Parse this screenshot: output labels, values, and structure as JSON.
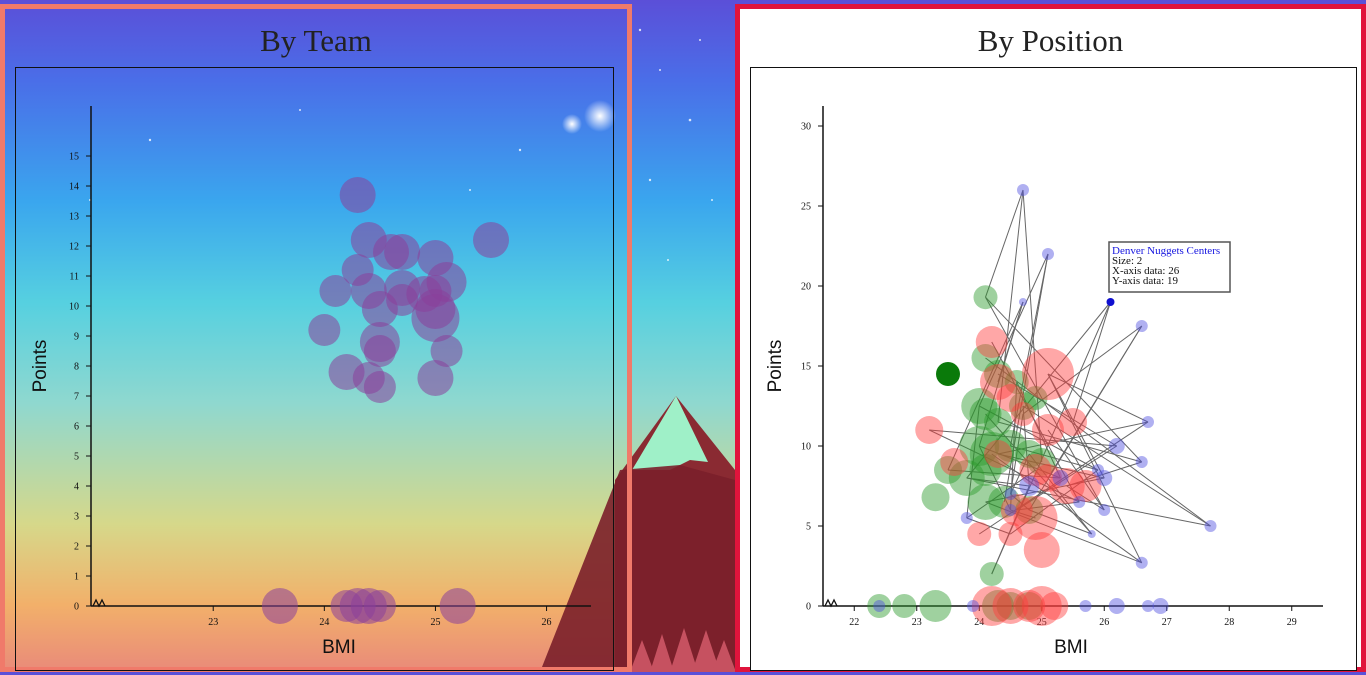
{
  "panels": {
    "team": {
      "title": "By Team"
    },
    "position": {
      "title": "By Position"
    }
  },
  "colors": {
    "team_bubble": "#8a3f9a",
    "guards": "#2a9a2a",
    "forwards": "#ff3b3b",
    "centers": "#5050e0",
    "link_line": "#666666"
  },
  "chart_data": [
    {
      "type": "scatter",
      "title": "By Team",
      "xlabel": "BMI",
      "ylabel": "Points",
      "xlim": [
        21.9,
        26.4
      ],
      "ylim": [
        0,
        16
      ],
      "xticks": [
        23,
        24,
        25,
        26
      ],
      "yticks": [
        0,
        1,
        2,
        3,
        4,
        5,
        6,
        7,
        8,
        9,
        10,
        11,
        12,
        13,
        14,
        15
      ],
      "series": [
        {
          "color": "#8a3f9a",
          "points": [
            {
              "x": 24.3,
              "y": 13.7,
              "size": 18
            },
            {
              "x": 24.4,
              "y": 12.2,
              "size": 18
            },
            {
              "x": 24.6,
              "y": 11.8,
              "size": 18
            },
            {
              "x": 24.7,
              "y": 11.8,
              "size": 18
            },
            {
              "x": 25.0,
              "y": 11.6,
              "size": 18
            },
            {
              "x": 25.5,
              "y": 12.2,
              "size": 18
            },
            {
              "x": 24.3,
              "y": 11.2,
              "size": 16
            },
            {
              "x": 24.1,
              "y": 10.5,
              "size": 16
            },
            {
              "x": 24.4,
              "y": 10.5,
              "size": 18
            },
            {
              "x": 24.7,
              "y": 10.6,
              "size": 18
            },
            {
              "x": 24.9,
              "y": 10.4,
              "size": 18
            },
            {
              "x": 25.0,
              "y": 10.5,
              "size": 16
            },
            {
              "x": 25.1,
              "y": 10.8,
              "size": 20
            },
            {
              "x": 24.5,
              "y": 9.9,
              "size": 18
            },
            {
              "x": 24.7,
              "y": 10.2,
              "size": 16
            },
            {
              "x": 25.0,
              "y": 9.9,
              "size": 20
            },
            {
              "x": 25.0,
              "y": 9.6,
              "size": 24
            },
            {
              "x": 24.0,
              "y": 9.2,
              "size": 16
            },
            {
              "x": 24.5,
              "y": 8.8,
              "size": 20
            },
            {
              "x": 24.5,
              "y": 8.5,
              "size": 16
            },
            {
              "x": 25.1,
              "y": 8.5,
              "size": 16
            },
            {
              "x": 24.2,
              "y": 7.8,
              "size": 18
            },
            {
              "x": 24.4,
              "y": 7.6,
              "size": 16
            },
            {
              "x": 24.5,
              "y": 7.3,
              "size": 16
            },
            {
              "x": 25.0,
              "y": 7.6,
              "size": 18
            },
            {
              "x": 23.6,
              "y": 0,
              "size": 18
            },
            {
              "x": 24.2,
              "y": 0,
              "size": 16
            },
            {
              "x": 24.3,
              "y": 0,
              "size": 18
            },
            {
              "x": 24.4,
              "y": 0,
              "size": 18
            },
            {
              "x": 24.5,
              "y": 0,
              "size": 16
            },
            {
              "x": 25.2,
              "y": 0,
              "size": 18
            }
          ]
        }
      ]
    },
    {
      "type": "scatter",
      "title": "By Position",
      "xlabel": "BMI",
      "ylabel": "Points",
      "xlim": [
        21.5,
        29.5
      ],
      "ylim": [
        0,
        32
      ],
      "xticks": [
        22,
        23,
        24,
        25,
        26,
        27,
        28,
        29
      ],
      "yticks": [
        0,
        5,
        10,
        15,
        20,
        25,
        30
      ],
      "series": [
        {
          "color": "#2a9a2a",
          "points": [
            {
              "x": 24.1,
              "y": 19.3,
              "size": 12
            },
            {
              "x": 24.1,
              "y": 15.5,
              "size": 14
            },
            {
              "x": 24.3,
              "y": 14.5,
              "size": 14
            },
            {
              "x": 24.6,
              "y": 14.0,
              "size": 12
            },
            {
              "x": 23.5,
              "y": 14.5,
              "size": 12,
              "highlight": true
            },
            {
              "x": 24.0,
              "y": 12.5,
              "size": 18
            },
            {
              "x": 24.1,
              "y": 12.0,
              "size": 16
            },
            {
              "x": 24.3,
              "y": 11.5,
              "size": 14
            },
            {
              "x": 24.7,
              "y": 12.5,
              "size": 14
            },
            {
              "x": 24.9,
              "y": 13.0,
              "size": 12
            },
            {
              "x": 24.0,
              "y": 10.0,
              "size": 20
            },
            {
              "x": 24.2,
              "y": 9.5,
              "size": 22
            },
            {
              "x": 24.5,
              "y": 10.0,
              "size": 16
            },
            {
              "x": 24.8,
              "y": 9.5,
              "size": 14
            },
            {
              "x": 25.0,
              "y": 9.0,
              "size": 14
            },
            {
              "x": 23.8,
              "y": 8.0,
              "size": 18
            },
            {
              "x": 24.1,
              "y": 8.5,
              "size": 16
            },
            {
              "x": 23.5,
              "y": 8.5,
              "size": 14
            },
            {
              "x": 24.1,
              "y": 6.5,
              "size": 18
            },
            {
              "x": 24.4,
              "y": 6.5,
              "size": 16
            },
            {
              "x": 24.8,
              "y": 6.0,
              "size": 14
            },
            {
              "x": 23.3,
              "y": 6.8,
              "size": 14
            },
            {
              "x": 24.2,
              "y": 2.0,
              "size": 12
            },
            {
              "x": 22.4,
              "y": 0,
              "size": 12
            },
            {
              "x": 22.8,
              "y": 0,
              "size": 12
            },
            {
              "x": 23.3,
              "y": 0,
              "size": 16
            },
            {
              "x": 24.3,
              "y": 0,
              "size": 16
            },
            {
              "x": 24.5,
              "y": 0,
              "size": 14
            },
            {
              "x": 24.8,
              "y": 0,
              "size": 14
            }
          ]
        },
        {
          "color": "#ff3b3b",
          "points": [
            {
              "x": 24.2,
              "y": 16.5,
              "size": 16
            },
            {
              "x": 24.3,
              "y": 14.0,
              "size": 18
            },
            {
              "x": 25.1,
              "y": 14.5,
              "size": 26
            },
            {
              "x": 24.5,
              "y": 13.0,
              "size": 14
            },
            {
              "x": 24.7,
              "y": 12.0,
              "size": 12
            },
            {
              "x": 25.1,
              "y": 11.0,
              "size": 16
            },
            {
              "x": 25.5,
              "y": 11.5,
              "size": 14
            },
            {
              "x": 23.2,
              "y": 11.0,
              "size": 14
            },
            {
              "x": 23.6,
              "y": 9.0,
              "size": 14
            },
            {
              "x": 24.3,
              "y": 9.5,
              "size": 14
            },
            {
              "x": 24.9,
              "y": 8.5,
              "size": 16
            },
            {
              "x": 25.1,
              "y": 8.0,
              "size": 14
            },
            {
              "x": 25.4,
              "y": 7.5,
              "size": 18
            },
            {
              "x": 25.7,
              "y": 7.5,
              "size": 16
            },
            {
              "x": 24.6,
              "y": 6.0,
              "size": 16
            },
            {
              "x": 24.9,
              "y": 5.5,
              "size": 22
            },
            {
              "x": 24.0,
              "y": 4.5,
              "size": 12
            },
            {
              "x": 24.5,
              "y": 4.5,
              "size": 12
            },
            {
              "x": 25.0,
              "y": 3.5,
              "size": 18
            },
            {
              "x": 24.2,
              "y": 0,
              "size": 20
            },
            {
              "x": 24.5,
              "y": 0,
              "size": 18
            },
            {
              "x": 24.8,
              "y": 0,
              "size": 16
            },
            {
              "x": 25.0,
              "y": 0,
              "size": 20
            },
            {
              "x": 25.2,
              "y": 0,
              "size": 14
            }
          ]
        },
        {
          "color": "#5050e0",
          "points": [
            {
              "x": 24.7,
              "y": 26.0,
              "size": 6
            },
            {
              "x": 25.1,
              "y": 22.0,
              "size": 6
            },
            {
              "x": 24.7,
              "y": 19.0,
              "size": 4
            },
            {
              "x": 26.1,
              "y": 19.0,
              "size": 4,
              "highlight": true
            },
            {
              "x": 26.6,
              "y": 17.5,
              "size": 6
            },
            {
              "x": 26.7,
              "y": 11.5,
              "size": 6
            },
            {
              "x": 26.2,
              "y": 10.0,
              "size": 8
            },
            {
              "x": 26.6,
              "y": 9.0,
              "size": 6
            },
            {
              "x": 25.9,
              "y": 8.5,
              "size": 6
            },
            {
              "x": 25.3,
              "y": 8.0,
              "size": 8
            },
            {
              "x": 24.8,
              "y": 7.5,
              "size": 10
            },
            {
              "x": 24.5,
              "y": 7.0,
              "size": 6
            },
            {
              "x": 26.0,
              "y": 8.0,
              "size": 8
            },
            {
              "x": 25.6,
              "y": 6.5,
              "size": 6
            },
            {
              "x": 26.0,
              "y": 6.0,
              "size": 6
            },
            {
              "x": 23.8,
              "y": 5.5,
              "size": 6
            },
            {
              "x": 24.5,
              "y": 6.0,
              "size": 6
            },
            {
              "x": 27.7,
              "y": 5.0,
              "size": 6
            },
            {
              "x": 25.8,
              "y": 4.5,
              "size": 4
            },
            {
              "x": 26.6,
              "y": 2.7,
              "size": 6
            },
            {
              "x": 22.4,
              "y": 0,
              "size": 6
            },
            {
              "x": 23.9,
              "y": 0,
              "size": 6
            },
            {
              "x": 25.7,
              "y": 0,
              "size": 6
            },
            {
              "x": 26.2,
              "y": 0,
              "size": 8
            },
            {
              "x": 26.7,
              "y": 0,
              "size": 6
            },
            {
              "x": 26.9,
              "y": 0,
              "size": 8
            }
          ]
        }
      ],
      "tooltip": {
        "title": "Denver Nuggets Centers",
        "size_line": "Size: 2",
        "x_line": "X-axis data: 26",
        "y_line": "Y-axis data: 19"
      }
    }
  ]
}
